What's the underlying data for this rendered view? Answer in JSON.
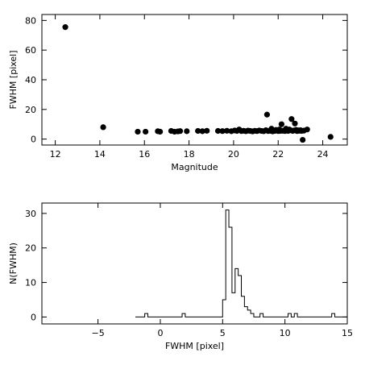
{
  "chart_data": [
    {
      "type": "scatter",
      "xlabel": "Magnitude",
      "ylabel": "FWHM [pixel]",
      "xlim": [
        11.4,
        25.1
      ],
      "ylim": [
        -4,
        84
      ],
      "xticks": [
        12,
        14,
        16,
        18,
        20,
        22,
        24
      ],
      "yticks": [
        0,
        20,
        40,
        60,
        80
      ],
      "grid": false,
      "marker_color": "#000000",
      "points": [
        [
          12.45,
          75.5
        ],
        [
          14.15,
          8.0
        ],
        [
          15.7,
          5.0
        ],
        [
          16.05,
          5.0
        ],
        [
          16.6,
          5.3
        ],
        [
          16.7,
          5.0
        ],
        [
          17.2,
          5.5
        ],
        [
          17.35,
          5.0
        ],
        [
          17.5,
          5.2
        ],
        [
          17.6,
          5.4
        ],
        [
          17.9,
          5.3
        ],
        [
          18.4,
          5.5
        ],
        [
          18.6,
          5.3
        ],
        [
          18.8,
          5.6
        ],
        [
          19.3,
          5.5
        ],
        [
          19.5,
          5.4
        ],
        [
          19.7,
          5.6
        ],
        [
          19.9,
          5.3
        ],
        [
          20.05,
          5.8
        ],
        [
          20.15,
          5.5
        ],
        [
          20.25,
          6.5
        ],
        [
          20.35,
          5.4
        ],
        [
          20.45,
          5.6
        ],
        [
          20.55,
          5.3
        ],
        [
          20.65,
          5.7
        ],
        [
          20.75,
          5.5
        ],
        [
          20.85,
          5.2
        ],
        [
          20.95,
          5.6
        ],
        [
          21.05,
          5.4
        ],
        [
          21.15,
          5.8
        ],
        [
          21.25,
          5.5
        ],
        [
          21.35,
          5.3
        ],
        [
          21.45,
          6.0
        ],
        [
          21.5,
          16.5
        ],
        [
          21.55,
          5.4
        ],
        [
          21.65,
          5.6
        ],
        [
          21.7,
          7.0
        ],
        [
          21.75,
          5.2
        ],
        [
          21.85,
          5.5
        ],
        [
          21.9,
          6.2
        ],
        [
          21.95,
          5.8
        ],
        [
          22.0,
          5.4
        ],
        [
          22.05,
          6.5
        ],
        [
          22.1,
          5.5
        ],
        [
          22.15,
          10.0
        ],
        [
          22.2,
          5.6
        ],
        [
          22.3,
          5.4
        ],
        [
          22.35,
          7.0
        ],
        [
          22.4,
          5.7
        ],
        [
          22.45,
          5.5
        ],
        [
          22.5,
          6.5
        ],
        [
          22.55,
          6.0
        ],
        [
          22.6,
          13.5
        ],
        [
          22.65,
          5.5
        ],
        [
          22.7,
          5.8
        ],
        [
          22.75,
          10.5
        ],
        [
          22.8,
          6.2
        ],
        [
          22.85,
          5.4
        ],
        [
          22.9,
          5.9
        ],
        [
          22.95,
          5.6
        ],
        [
          23.0,
          6.0
        ],
        [
          23.05,
          5.5
        ],
        [
          23.1,
          -0.5
        ],
        [
          23.15,
          5.7
        ],
        [
          23.3,
          6.5
        ],
        [
          24.35,
          1.5
        ]
      ]
    },
    {
      "type": "histogram",
      "xlabel": "FWHM [pixel]",
      "ylabel": "N(FWHM)",
      "xlim": [
        -9.5,
        15
      ],
      "ylim": [
        -2,
        33
      ],
      "xticks": [
        -5,
        0,
        5,
        10,
        15
      ],
      "yticks": [
        0,
        10,
        20,
        30
      ],
      "grid": false,
      "bin_width": 0.25,
      "bin_start": -2.0,
      "bin_end": 15.0,
      "bars": [
        [
          -1.25,
          1
        ],
        [
          1.75,
          1
        ],
        [
          5.0,
          5
        ],
        [
          5.25,
          31
        ],
        [
          5.5,
          26
        ],
        [
          5.75,
          7
        ],
        [
          6.0,
          14
        ],
        [
          6.25,
          12
        ],
        [
          6.5,
          6
        ],
        [
          6.75,
          3
        ],
        [
          7.0,
          2
        ],
        [
          7.25,
          1
        ],
        [
          8.0,
          1
        ],
        [
          10.25,
          1
        ],
        [
          10.75,
          1
        ],
        [
          13.75,
          1
        ]
      ]
    }
  ]
}
